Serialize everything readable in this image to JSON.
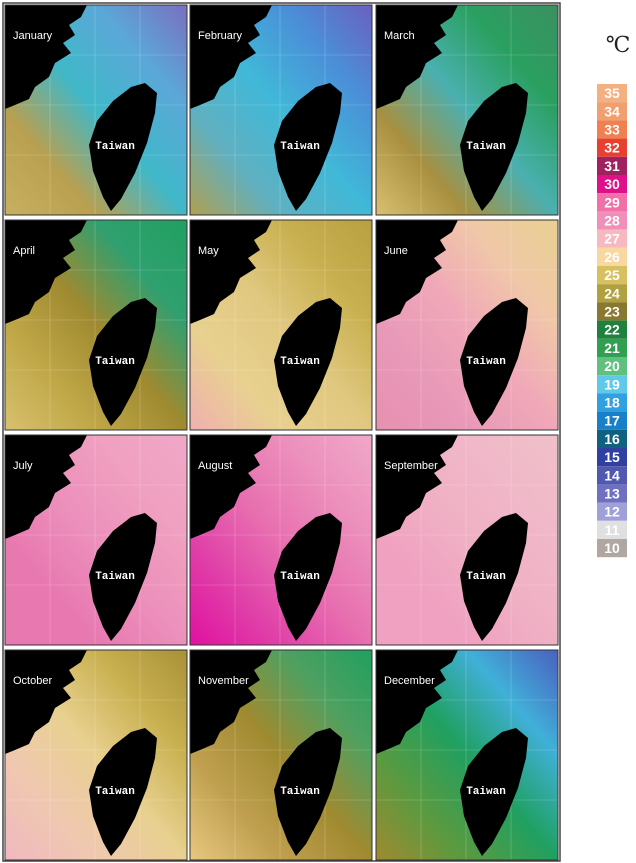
{
  "panels": [
    {
      "month": "January",
      "label": "Taiwan"
    },
    {
      "month": "February",
      "label": "Taiwan"
    },
    {
      "month": "March",
      "label": "Taiwan"
    },
    {
      "month": "April",
      "label": "Taiwan"
    },
    {
      "month": "May",
      "label": "Taiwan"
    },
    {
      "month": "June",
      "label": "Taiwan"
    },
    {
      "month": "July",
      "label": "Taiwan"
    },
    {
      "month": "August",
      "label": "Taiwan"
    },
    {
      "month": "September",
      "label": "Taiwan"
    },
    {
      "month": "October",
      "label": "Taiwan"
    },
    {
      "month": "November",
      "label": "Taiwan"
    },
    {
      "month": "December",
      "label": "Taiwan"
    }
  ],
  "legend": {
    "unit": "℃",
    "entries": [
      {
        "value": 35,
        "color": "#f4b080"
      },
      {
        "value": 34,
        "color": "#f0a070"
      },
      {
        "value": 33,
        "color": "#f08050"
      },
      {
        "value": 32,
        "color": "#e84030"
      },
      {
        "value": 31,
        "color": "#a02060"
      },
      {
        "value": 30,
        "color": "#e0108a"
      },
      {
        "value": 29,
        "color": "#f070a8"
      },
      {
        "value": 28,
        "color": "#f090b8"
      },
      {
        "value": 27,
        "color": "#f8b8c0"
      },
      {
        "value": 26,
        "color": "#f8d8a0"
      },
      {
        "value": 25,
        "color": "#d8c060"
      },
      {
        "value": 24,
        "color": "#b0a040"
      },
      {
        "value": 23,
        "color": "#887830"
      },
      {
        "value": 22,
        "color": "#208040"
      },
      {
        "value": 21,
        "color": "#30a050"
      },
      {
        "value": 20,
        "color": "#60c080"
      },
      {
        "value": 19,
        "color": "#60c8e8"
      },
      {
        "value": 18,
        "color": "#30a0e0"
      },
      {
        "value": 17,
        "color": "#1880c8"
      },
      {
        "value": 16,
        "color": "#106080"
      },
      {
        "value": 15,
        "color": "#3040a0"
      },
      {
        "value": 14,
        "color": "#5058b0"
      },
      {
        "value": 13,
        "color": "#7070c0"
      },
      {
        "value": 12,
        "color": "#a0a0d8"
      },
      {
        "value": 11,
        "color": "#e0e0e0"
      },
      {
        "value": 10,
        "color": "#b0a8a0"
      }
    ]
  }
}
